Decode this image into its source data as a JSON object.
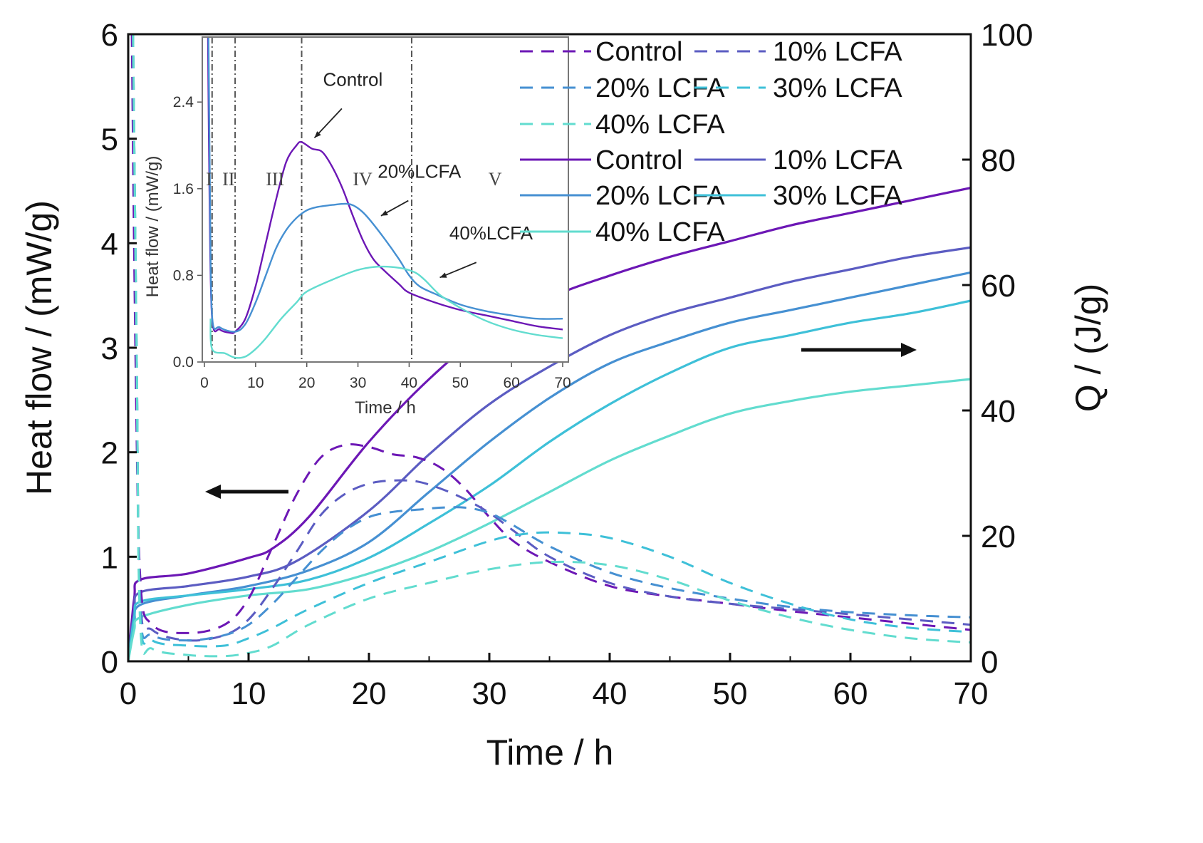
{
  "chart_data": {
    "type": "line",
    "xlabel": "Time / h",
    "ylabel": "Heat flow / (mW/g)",
    "y2label": "Q / (J/g)",
    "xlim": [
      0,
      70
    ],
    "ylim": [
      0,
      6
    ],
    "y2lim": [
      0,
      100
    ],
    "xticks": [
      "0",
      "10",
      "20",
      "30",
      "40",
      "50",
      "60",
      "70"
    ],
    "yticks": [
      "0",
      "1",
      "2",
      "3",
      "4",
      "5",
      "6"
    ],
    "y2ticks": [
      "0",
      "20",
      "40",
      "60",
      "80",
      "100"
    ],
    "colors": {
      "Control": "#6c17b5",
      "10% LCFA": "#5b5cc2",
      "20% LCFA": "#4690d2",
      "30% LCFA": "#3ec0d8",
      "40% LCFA": "#62dccf"
    },
    "legend": {
      "placement": "top-right",
      "entries": [
        {
          "label": "Control",
          "style": "dashed",
          "key": "Control"
        },
        {
          "label": "10% LCFA",
          "style": "dashed",
          "key": "10% LCFA"
        },
        {
          "label": "20% LCFA",
          "style": "dashed",
          "key": "20% LCFA"
        },
        {
          "label": "30% LCFA",
          "style": "dashed",
          "key": "30% LCFA"
        },
        {
          "label": "40% LCFA",
          "style": "dashed",
          "key": "40% LCFA"
        },
        {
          "label": "Control",
          "style": "solid",
          "key": "Control"
        },
        {
          "label": "10% LCFA",
          "style": "solid",
          "key": "10% LCFA"
        },
        {
          "label": "20% LCFA",
          "style": "solid",
          "key": "20% LCFA"
        },
        {
          "label": "30% LCFA",
          "style": "solid",
          "key": "30% LCFA"
        },
        {
          "label": "40% LCFA",
          "style": "solid",
          "key": "40% LCFA"
        }
      ]
    },
    "heat_flow_series": [
      {
        "name": "Control",
        "t": [
          0.3,
          0.6,
          1,
          2,
          5,
          8,
          10,
          12,
          14,
          16,
          18,
          20,
          22,
          24,
          26,
          28,
          30,
          32,
          35,
          40,
          45,
          50,
          55,
          60,
          65,
          70
        ],
        "v": [
          6,
          3,
          0.8,
          0.35,
          0.27,
          0.35,
          0.6,
          1.1,
          1.6,
          1.95,
          2.07,
          2.05,
          1.98,
          1.95,
          1.85,
          1.65,
          1.38,
          1.15,
          0.95,
          0.72,
          0.62,
          0.55,
          0.48,
          0.42,
          0.36,
          0.3
        ]
      },
      {
        "name": "10% LCFA",
        "t": [
          0.4,
          0.7,
          1,
          2,
          5,
          8,
          10,
          12,
          14,
          16,
          18,
          20,
          22,
          24,
          26,
          28,
          30,
          32,
          35,
          40,
          45,
          50,
          55,
          60,
          65,
          70
        ],
        "v": [
          6,
          3,
          0.6,
          0.3,
          0.2,
          0.25,
          0.4,
          0.7,
          1.05,
          1.4,
          1.6,
          1.7,
          1.73,
          1.72,
          1.65,
          1.55,
          1.42,
          1.25,
          1.0,
          0.75,
          0.62,
          0.55,
          0.5,
          0.45,
          0.4,
          0.35
        ]
      },
      {
        "name": "20% LCFA",
        "t": [
          0.4,
          0.7,
          1,
          2,
          5,
          8,
          10,
          12,
          14,
          16,
          18,
          20,
          22,
          24,
          26,
          28,
          30,
          32,
          35,
          40,
          45,
          50,
          55,
          60,
          65,
          70
        ],
        "v": [
          6,
          3,
          0.5,
          0.25,
          0.2,
          0.25,
          0.35,
          0.55,
          0.8,
          1.05,
          1.25,
          1.38,
          1.43,
          1.45,
          1.47,
          1.47,
          1.42,
          1.3,
          1.1,
          0.85,
          0.7,
          0.6,
          0.52,
          0.47,
          0.44,
          0.42
        ]
      },
      {
        "name": "30% LCFA",
        "t": [
          0.4,
          0.7,
          1,
          2,
          5,
          8,
          10,
          12,
          15,
          20,
          25,
          30,
          33,
          36,
          40,
          45,
          50,
          55,
          60,
          65,
          70
        ],
        "v": [
          6,
          3,
          0.45,
          0.2,
          0.15,
          0.15,
          0.22,
          0.32,
          0.5,
          0.75,
          0.95,
          1.15,
          1.22,
          1.23,
          1.18,
          1.0,
          0.75,
          0.55,
          0.4,
          0.32,
          0.28
        ]
      },
      {
        "name": "40% LCFA",
        "t": [
          0.4,
          0.7,
          1,
          2,
          5,
          8,
          10,
          12,
          15,
          20,
          25,
          30,
          35,
          40,
          45,
          50,
          55,
          60,
          65,
          70
        ],
        "v": [
          6,
          3,
          0.35,
          0.12,
          0.06,
          0.05,
          0.08,
          0.15,
          0.35,
          0.6,
          0.75,
          0.88,
          0.95,
          0.92,
          0.78,
          0.58,
          0.42,
          0.3,
          0.22,
          0.18
        ]
      }
    ],
    "q_series": [
      {
        "name": "Control",
        "t": [
          0,
          0.5,
          1,
          5,
          10,
          12,
          15,
          20,
          25,
          30,
          35,
          40,
          45,
          50,
          55,
          60,
          65,
          70
        ],
        "v": [
          0,
          10,
          13,
          14,
          16.5,
          18,
          23,
          35,
          45,
          53,
          58,
          61.5,
          64.5,
          67,
          69.5,
          71.5,
          73.5,
          75.5
        ]
      },
      {
        "name": "10% LCFA",
        "t": [
          0,
          0.5,
          1,
          5,
          10,
          14,
          20,
          25,
          30,
          35,
          40,
          45,
          50,
          55,
          60,
          65,
          70
        ],
        "v": [
          0,
          8,
          11,
          12,
          13.5,
          16,
          24,
          33,
          41,
          47,
          52,
          55.5,
          58,
          60.5,
          62.5,
          64.5,
          66
        ]
      },
      {
        "name": "20% LCFA",
        "t": [
          0,
          0.5,
          1,
          5,
          10,
          15,
          20,
          25,
          30,
          35,
          40,
          45,
          50,
          55,
          60,
          65,
          70
        ],
        "v": [
          0,
          6,
          9,
          10.5,
          12,
          14.5,
          19,
          27,
          35,
          42,
          47.5,
          51,
          54,
          56,
          58,
          60,
          62
        ]
      },
      {
        "name": "30% LCFA",
        "t": [
          0,
          0.5,
          1,
          5,
          10,
          15,
          20,
          25,
          30,
          35,
          40,
          45,
          50,
          55,
          60,
          65,
          70
        ],
        "v": [
          0,
          7,
          9.5,
          10.5,
          11.5,
          13,
          16.5,
          22,
          28,
          35,
          41,
          46,
          50,
          52,
          54,
          55.5,
          57.5
        ]
      },
      {
        "name": "40% LCFA",
        "t": [
          0,
          0.5,
          1,
          5,
          10,
          15,
          20,
          25,
          30,
          35,
          40,
          45,
          50,
          55,
          60,
          65,
          70
        ],
        "v": [
          0,
          5,
          7,
          9,
          10.5,
          11.5,
          14,
          17.5,
          22,
          27,
          32,
          36,
          39.5,
          41.5,
          43,
          44,
          45
        ]
      }
    ],
    "arrows": [
      {
        "direction": "left",
        "refers_to": "Heat flow axis"
      },
      {
        "direction": "right",
        "refers_to": "Q axis"
      }
    ],
    "inset": {
      "type": "line",
      "xlabel": "Time / h",
      "ylabel": "Heat flow / (mW/g)",
      "xlim": [
        0,
        70
      ],
      "ylim": [
        0,
        3.0
      ],
      "xticks": [
        "0",
        "10",
        "20",
        "30",
        "40",
        "50",
        "60",
        "70"
      ],
      "yticks": [
        "0.0",
        "0.8",
        "1.6",
        "2.4"
      ],
      "stage_boundaries_h": [
        1.5,
        6,
        19,
        40.5
      ],
      "stages": [
        {
          "label": "I",
          "t": 0.3
        },
        {
          "label": "II",
          "t": 3.5
        },
        {
          "label": "III",
          "t": 12
        },
        {
          "label": "IV",
          "t": 29
        },
        {
          "label": "V",
          "t": 55.5
        }
      ],
      "annotations": [
        {
          "text": "Control",
          "t": 29,
          "v": 2.55,
          "arrow_to_t": 21.5,
          "arrow_to_v": 2.07
        },
        {
          "text": "20%LCFA",
          "t": 42,
          "v": 1.7,
          "arrow_to_t": 34.5,
          "arrow_to_v": 1.35
        },
        {
          "text": "40%LCFA",
          "t": 56,
          "v": 1.13,
          "arrow_to_t": 46,
          "arrow_to_v": 0.78
        }
      ],
      "series": [
        {
          "name": "Control",
          "t": [
            0.7,
            1,
            1.5,
            3,
            5,
            6,
            8,
            10,
            12,
            14,
            16,
            18,
            19,
            21,
            23,
            25,
            27,
            29,
            31,
            33,
            35,
            38,
            40,
            45,
            50,
            55,
            60,
            65,
            70
          ],
          "v": [
            3,
            1.5,
            0.4,
            0.3,
            0.27,
            0.28,
            0.4,
            0.7,
            1.1,
            1.5,
            1.85,
            2.0,
            2.03,
            1.97,
            1.94,
            1.8,
            1.6,
            1.35,
            1.12,
            0.95,
            0.85,
            0.72,
            0.64,
            0.55,
            0.48,
            0.43,
            0.38,
            0.33,
            0.3
          ]
        },
        {
          "name": "20% LCFA",
          "t": [
            0.8,
            1.1,
            1.5,
            3,
            6,
            8,
            10,
            12,
            14,
            16,
            18,
            20,
            22,
            25,
            28,
            30,
            32,
            35,
            38,
            40,
            42,
            45,
            50,
            55,
            60,
            65,
            70
          ],
          "v": [
            3,
            1.5,
            0.42,
            0.32,
            0.28,
            0.35,
            0.55,
            0.8,
            1.05,
            1.22,
            1.33,
            1.4,
            1.43,
            1.45,
            1.46,
            1.42,
            1.33,
            1.15,
            0.95,
            0.8,
            0.7,
            0.63,
            0.53,
            0.47,
            0.43,
            0.4,
            0.4
          ]
        },
        {
          "name": "40% LCFA",
          "t": [
            1.2,
            1.5,
            4,
            6,
            8,
            10,
            12,
            15,
            18,
            20,
            25,
            30,
            34,
            38,
            41,
            43,
            46,
            50,
            55,
            60,
            65,
            70
          ],
          "v": [
            0.4,
            0.12,
            0.08,
            0.04,
            0.05,
            0.12,
            0.22,
            0.4,
            0.55,
            0.65,
            0.76,
            0.85,
            0.88,
            0.87,
            0.83,
            0.76,
            0.62,
            0.5,
            0.38,
            0.3,
            0.25,
            0.22
          ]
        }
      ]
    }
  }
}
